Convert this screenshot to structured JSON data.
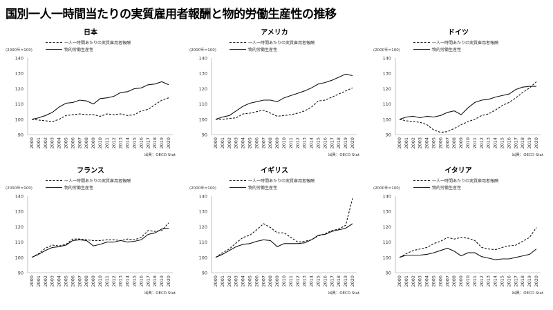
{
  "title": "国別一人一時間当たりの実質雇用者報酬と物的労働生産性の推移",
  "legend": {
    "compensation": "一人一時間あたりの実質雇用者報酬",
    "productivity": "物的労働生産性"
  },
  "unit": "(2000年=100)",
  "source": "出典：OECD Stat",
  "chart_data": [
    {
      "type": "line",
      "title": "日本",
      "x": [
        "2000",
        "2001",
        "2002",
        "2003",
        "2004",
        "2005",
        "2006",
        "2007",
        "2008",
        "2009",
        "2010",
        "2011",
        "2012",
        "2013",
        "2014",
        "2015",
        "2016",
        "2017",
        "2018",
        "2019",
        "2020"
      ],
      "ylim": [
        90,
        140
      ],
      "yticks": [
        90,
        100,
        110,
        120,
        130,
        140
      ],
      "series": [
        {
          "name": "一人一時間あたりの実質雇用者報酬",
          "style": "dashed",
          "values": [
            100,
            99.5,
            99,
            98.5,
            100,
            102.5,
            103,
            103.5,
            103,
            103,
            102,
            103.5,
            103,
            103.5,
            102.5,
            103,
            105.5,
            106.5,
            109.5,
            112.5,
            114
          ]
        },
        {
          "name": "物的労働生産性",
          "style": "solid",
          "values": [
            100,
            101,
            102.5,
            104.5,
            108,
            110.5,
            111,
            112.5,
            112,
            110,
            113.5,
            114,
            115,
            117.5,
            118,
            120,
            120.5,
            122.5,
            123,
            124.5,
            122.5
          ]
        }
      ]
    },
    {
      "type": "line",
      "title": "アメリカ",
      "x": [
        "2000",
        "2001",
        "2002",
        "2003",
        "2004",
        "2005",
        "2006",
        "2007",
        "2008",
        "2009",
        "2010",
        "2011",
        "2012",
        "2013",
        "2014",
        "2015",
        "2016",
        "2017",
        "2018",
        "2019",
        "2020"
      ],
      "ylim": [
        90,
        140
      ],
      "yticks": [
        90,
        100,
        110,
        120,
        130,
        140
      ],
      "series": [
        {
          "name": "一人一時間あたりの実質雇用者報酬",
          "style": "dashed",
          "values": [
            100,
            100,
            100.5,
            101,
            103.5,
            104,
            105,
            106,
            104,
            102,
            102.5,
            103,
            104,
            105.5,
            108,
            112,
            112.5,
            114.5,
            116.5,
            118.5,
            120.5
          ]
        },
        {
          "name": "物的労働生産性",
          "style": "solid",
          "values": [
            100,
            101.5,
            102.5,
            105.5,
            108.5,
            110.5,
            111.5,
            112.5,
            112.5,
            111.5,
            114,
            115.5,
            117,
            118.5,
            120.5,
            123,
            124,
            125.5,
            127.5,
            129.5,
            128.5
          ]
        }
      ]
    },
    {
      "type": "line",
      "title": "ドイツ",
      "x": [
        "2000",
        "2001",
        "2002",
        "2003",
        "2004",
        "2005",
        "2006",
        "2007",
        "2008",
        "2009",
        "2010",
        "2011",
        "2012",
        "2013",
        "2014",
        "2015",
        "2016",
        "2017",
        "2018",
        "2019",
        "2020"
      ],
      "ylim": [
        90,
        140
      ],
      "yticks": [
        90,
        100,
        110,
        120,
        130,
        140
      ],
      "series": [
        {
          "name": "一人一時間あたりの実質雇用者報酬",
          "style": "dashed",
          "values": [
            100,
            99,
            98.5,
            98,
            96.5,
            93,
            91.5,
            92,
            94,
            96.5,
            98.5,
            100,
            102.5,
            103.5,
            106,
            109,
            111,
            114,
            117.5,
            120.5,
            124.5
          ]
        },
        {
          "name": "物的労働生産性",
          "style": "solid",
          "values": [
            100,
            101.5,
            102,
            101,
            102,
            101.5,
            102.5,
            104.5,
            105.5,
            103,
            107.5,
            111,
            112.5,
            113,
            114.5,
            115.5,
            116.5,
            119.5,
            121,
            121.5,
            121.5
          ]
        }
      ]
    },
    {
      "type": "line",
      "title": "フランス",
      "x": [
        "2000",
        "2001",
        "2002",
        "2003",
        "2004",
        "2005",
        "2006",
        "2007",
        "2008",
        "2009",
        "2010",
        "2011",
        "2012",
        "2013",
        "2014",
        "2015",
        "2016",
        "2017",
        "2018",
        "2019",
        "2020"
      ],
      "ylim": [
        90,
        140
      ],
      "yticks": [
        90,
        100,
        110,
        120,
        130,
        140
      ],
      "series": [
        {
          "name": "一人一時間あたりの実質雇用者報酬",
          "style": "dashed",
          "values": [
            100,
            102.5,
            106,
            108,
            107.5,
            108.5,
            112,
            112,
            111.5,
            111,
            111,
            111.5,
            111.5,
            111,
            112,
            111.5,
            113,
            117.5,
            117,
            117.5,
            122.5
          ]
        },
        {
          "name": "物的労働生産性",
          "style": "solid",
          "values": [
            100,
            102,
            104.5,
            106.5,
            107,
            108,
            111,
            111.5,
            111,
            107.5,
            108.5,
            110,
            110,
            111,
            110,
            110.5,
            111.5,
            115,
            116,
            118.5,
            119
          ]
        }
      ]
    },
    {
      "type": "line",
      "title": "イギリス",
      "x": [
        "2000",
        "2001",
        "2002",
        "2003",
        "2004",
        "2005",
        "2006",
        "2007",
        "2008",
        "2009",
        "2010",
        "2011",
        "2012",
        "2013",
        "2014",
        "2015",
        "2016",
        "2017",
        "2018",
        "2019",
        "2020"
      ],
      "ylim": [
        90,
        140
      ],
      "yticks": [
        90,
        100,
        110,
        120,
        130,
        140
      ],
      "series": [
        {
          "name": "一人一時間あたりの実質雇用者報酬",
          "style": "dashed",
          "values": [
            100,
            103,
            105.5,
            109.5,
            113,
            114.5,
            118,
            122,
            119.5,
            116,
            116,
            113,
            110,
            110.5,
            111.5,
            114,
            115.5,
            117.5,
            118.5,
            121,
            138.5
          ]
        },
        {
          "name": "物的労働生産性",
          "style": "solid",
          "values": [
            100,
            102,
            104.5,
            107,
            108.5,
            109,
            110.5,
            111.5,
            111,
            107,
            109,
            109,
            109,
            109.5,
            111.5,
            114.5,
            115,
            117,
            118,
            119,
            122
          ]
        }
      ]
    },
    {
      "type": "line",
      "title": "イタリア",
      "x": [
        "2000",
        "2001",
        "2002",
        "2003",
        "2004",
        "2005",
        "2006",
        "2007",
        "2008",
        "2009",
        "2010",
        "2011",
        "2012",
        "2013",
        "2014",
        "2015",
        "2016",
        "2017",
        "2018",
        "2019",
        "2020"
      ],
      "ylim": [
        90,
        140
      ],
      "yticks": [
        90,
        100,
        110,
        120,
        130,
        140
      ],
      "series": [
        {
          "name": "一人一時間あたりの実質雇用者報酬",
          "style": "dashed",
          "values": [
            100,
            102.5,
            104.5,
            105.5,
            106.5,
            109,
            110.5,
            113,
            112,
            113,
            112.5,
            111,
            106.5,
            105.5,
            105,
            106.5,
            107.5,
            108,
            110.5,
            113,
            119.5
          ]
        },
        {
          "name": "物的労働生産性",
          "style": "solid",
          "values": [
            100,
            101.5,
            101.5,
            101.5,
            102,
            103,
            104.5,
            106,
            104,
            101,
            103,
            103,
            100.5,
            99.5,
            98.5,
            99,
            99,
            100,
            101,
            102,
            105.5
          ]
        }
      ]
    }
  ]
}
